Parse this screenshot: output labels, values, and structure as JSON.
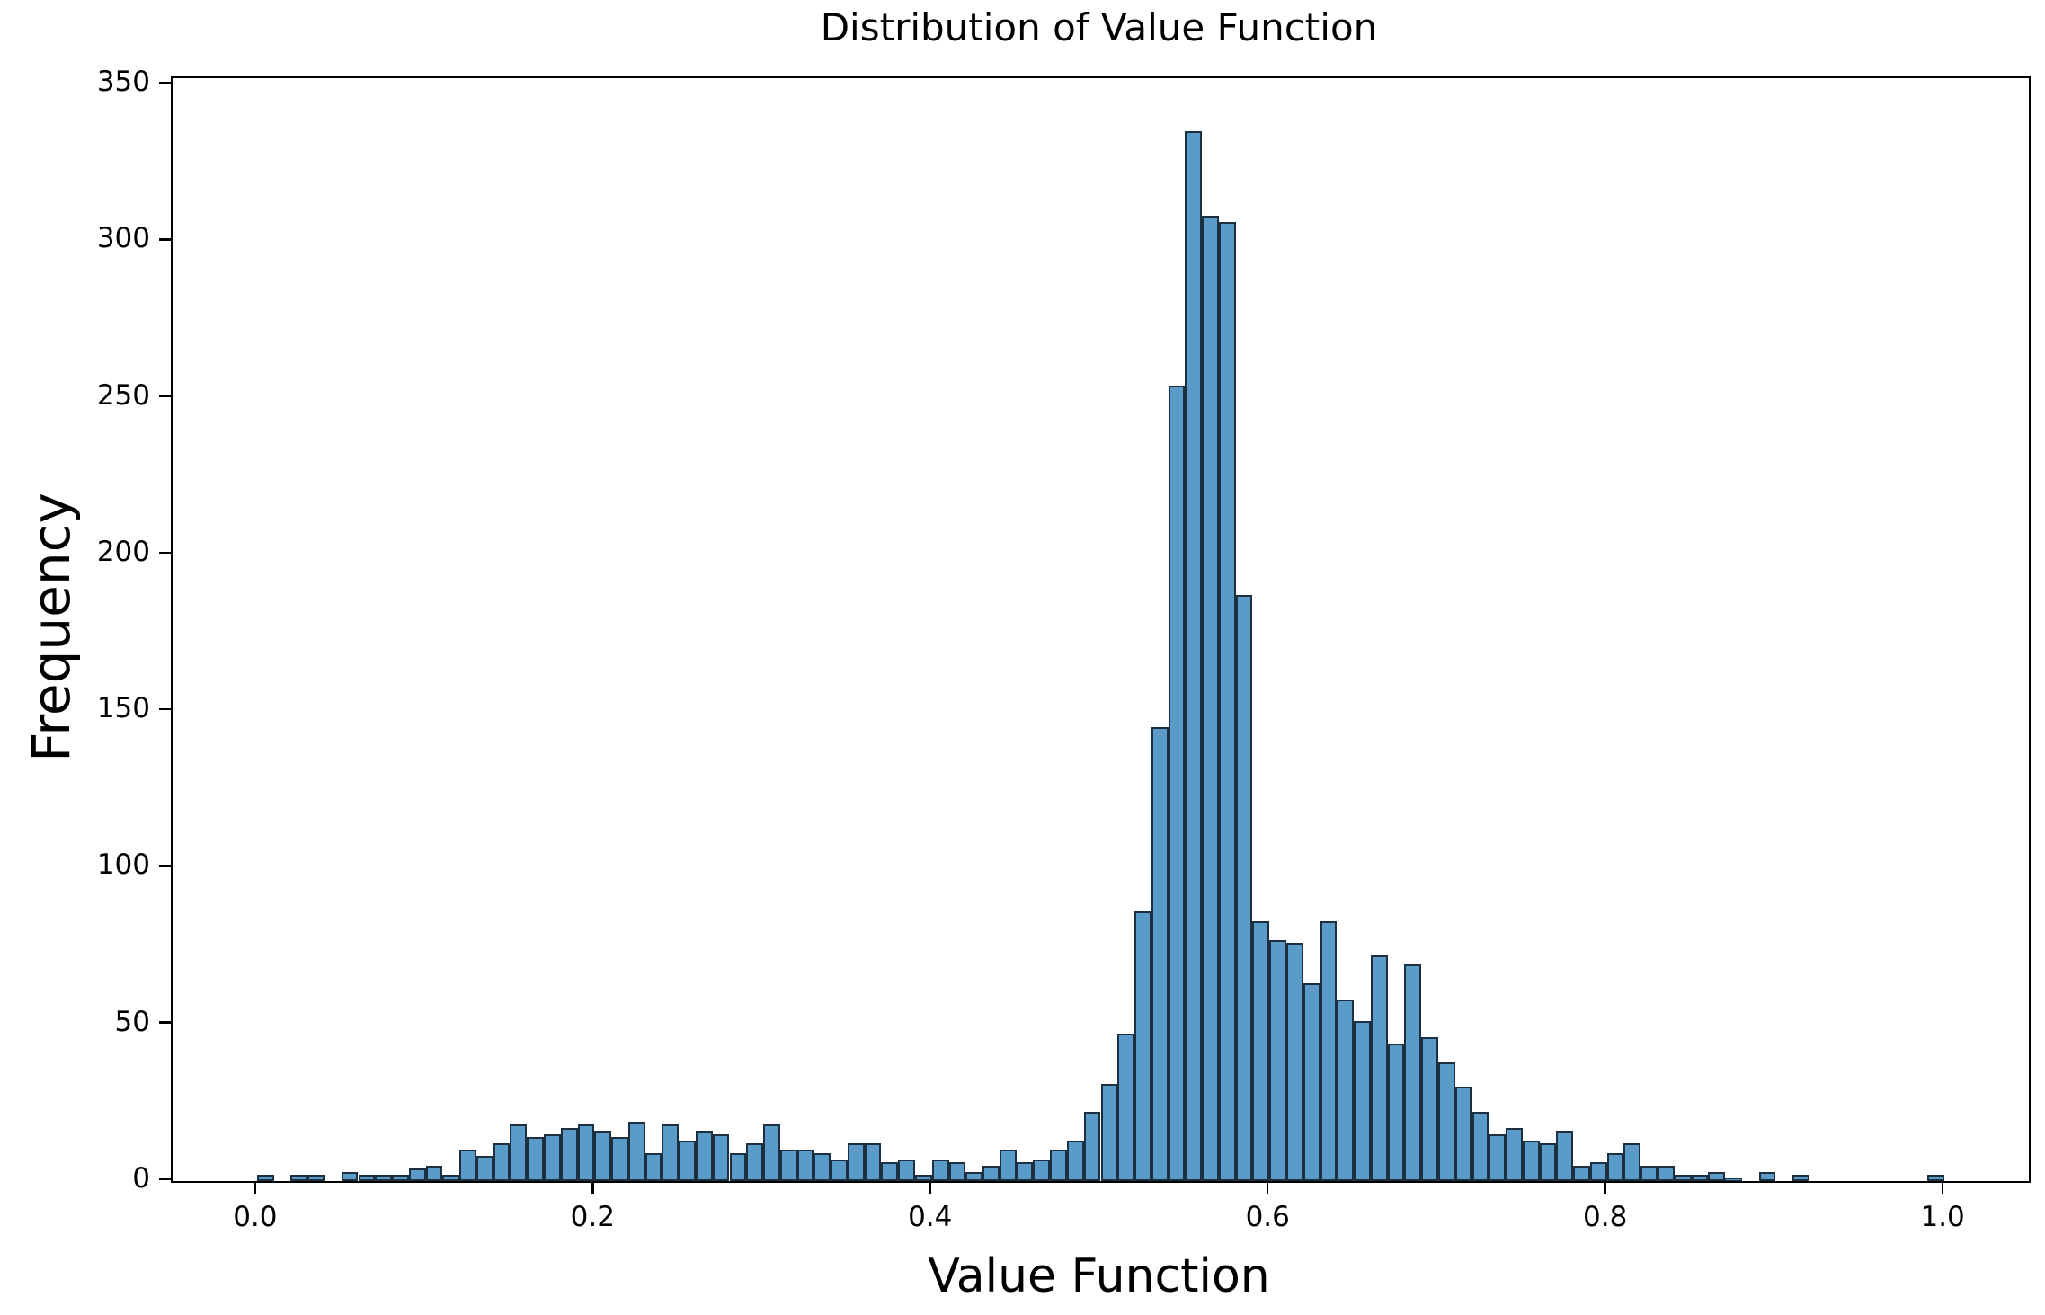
{
  "chart_data": {
    "type": "bar",
    "subtype": "histogram",
    "title": "Distribution of Value Function",
    "xlabel": "Value Function",
    "ylabel": "Frequency",
    "bin_start": 0.0,
    "bin_width": 0.01,
    "values": [
      2,
      0,
      2,
      2,
      0,
      3,
      2,
      2,
      2,
      4,
      5,
      2,
      10,
      8,
      12,
      18,
      14,
      15,
      17,
      18,
      16,
      14,
      19,
      9,
      18,
      13,
      16,
      15,
      9,
      12,
      18,
      10,
      10,
      9,
      7,
      12,
      12,
      6,
      7,
      2,
      7,
      6,
      3,
      5,
      10,
      6,
      7,
      10,
      13,
      22,
      31,
      47,
      86,
      145,
      254,
      335,
      308,
      306,
      187,
      83,
      77,
      76,
      63,
      83,
      58,
      51,
      72,
      44,
      69,
      46,
      38,
      30,
      22,
      15,
      17,
      13,
      12,
      16,
      5,
      6,
      9,
      12,
      5,
      5,
      2,
      2,
      3,
      1,
      0,
      3,
      0,
      2,
      0,
      0,
      0,
      0,
      0,
      0,
      0,
      2
    ],
    "xlim": [
      -0.05,
      1.05
    ],
    "ylim": [
      0,
      352
    ],
    "xticks": [
      0.0,
      0.2,
      0.4,
      0.6,
      0.8,
      1.0
    ],
    "xtick_labels": [
      "0.0",
      "0.2",
      "0.4",
      "0.6",
      "0.8",
      "1.0"
    ],
    "yticks": [
      0,
      50,
      100,
      150,
      200,
      250,
      300,
      350
    ],
    "ytick_labels": [
      "0",
      "50",
      "100",
      "150",
      "200",
      "250",
      "300",
      "350"
    ],
    "grid": false,
    "legend_position": "none",
    "bar_fill_color": "#5b9bc9",
    "bar_edge_color": "#1c3040",
    "axis_color": "#000000",
    "background_color": "#ffffff"
  }
}
